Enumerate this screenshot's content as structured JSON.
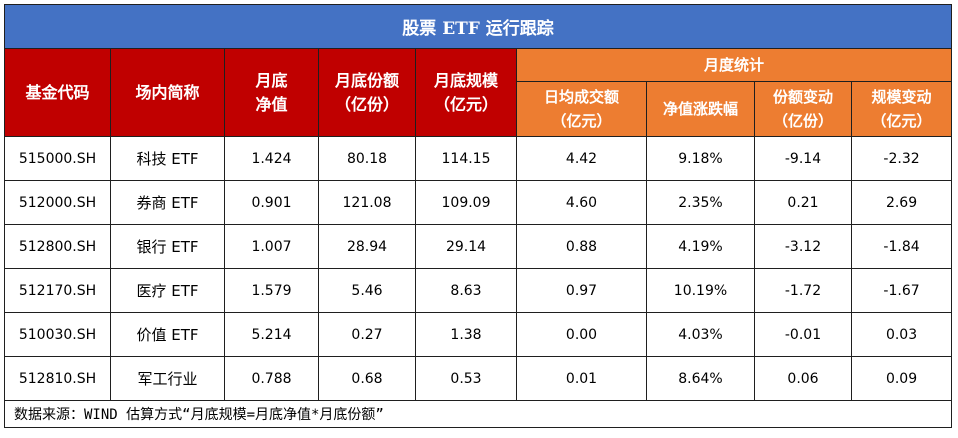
{
  "title": "股票 ETF 运行跟踪",
  "headers": {
    "fund_code": "基金代码",
    "short_name": "场内简称",
    "nav": [
      "月底",
      "净值"
    ],
    "shares": [
      "月底份额",
      "（亿份）"
    ],
    "scale": [
      "月底规模",
      "（亿元）"
    ],
    "monthly_group": "月度统计",
    "avg_turnover": [
      "日均成交额",
      "（亿元）"
    ],
    "nav_change": [
      "净值涨跌幅"
    ],
    "share_change": [
      "份额变动",
      "（亿份）"
    ],
    "scale_change": [
      "规模变动",
      "（亿元）"
    ]
  },
  "rows": [
    {
      "code": "515000.SH",
      "name": "科技 ETF",
      "nav": "1.424",
      "shares": "80.18",
      "scale": "114.15",
      "turnover": "4.42",
      "nav_chg": "9.18%",
      "share_chg": "-9.14",
      "scale_chg": "-2.32"
    },
    {
      "code": "512000.SH",
      "name": "券商 ETF",
      "nav": "0.901",
      "shares": "121.08",
      "scale": "109.09",
      "turnover": "4.60",
      "nav_chg": "2.35%",
      "share_chg": "0.21",
      "scale_chg": "2.69"
    },
    {
      "code": "512800.SH",
      "name": "银行 ETF",
      "nav": "1.007",
      "shares": "28.94",
      "scale": "29.14",
      "turnover": "0.88",
      "nav_chg": "4.19%",
      "share_chg": "-3.12",
      "scale_chg": "-1.84"
    },
    {
      "code": "512170.SH",
      "name": "医疗 ETF",
      "nav": "1.579",
      "shares": "5.46",
      "scale": "8.63",
      "turnover": "0.97",
      "nav_chg": "10.19%",
      "share_chg": "-1.72",
      "scale_chg": "-1.67"
    },
    {
      "code": "510030.SH",
      "name": "价值 ETF",
      "nav": "5.214",
      "shares": "0.27",
      "scale": "1.38",
      "turnover": "0.00",
      "nav_chg": "4.03%",
      "share_chg": "-0.01",
      "scale_chg": "0.03"
    },
    {
      "code": "512810.SH",
      "name": "军工行业",
      "nav": "0.788",
      "shares": "0.68",
      "scale": "0.53",
      "turnover": "0.01",
      "nav_chg": "8.64%",
      "share_chg": "0.06",
      "scale_chg": "0.09"
    }
  ],
  "note": "数据来源：WIND 估算方式“月底规模=月底净值*月底份额”"
}
